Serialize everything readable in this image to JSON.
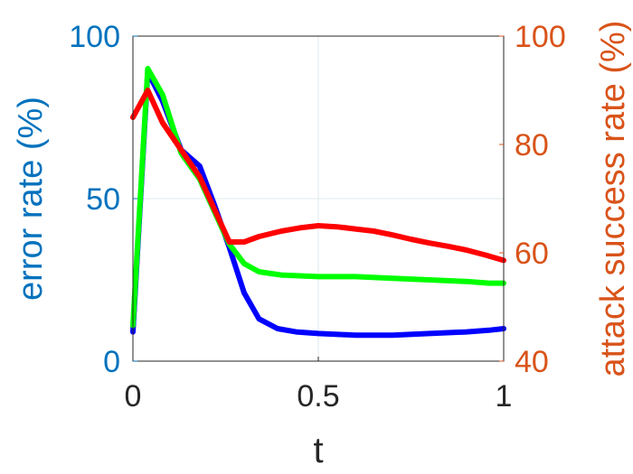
{
  "chart_data": {
    "type": "line",
    "xlabel": "t",
    "ylabel_left": "error rate (%)",
    "ylabel_right": "attack success rate (%)",
    "xlim": [
      0,
      1
    ],
    "ylim_left": [
      0,
      100
    ],
    "ylim_right": [
      40,
      100
    ],
    "xticks": [
      "0",
      "0.5",
      "1"
    ],
    "yticks_left": [
      "0",
      "50",
      "100"
    ],
    "yticks_right": [
      "40",
      "60",
      "80",
      "100"
    ],
    "grid": true,
    "series": [
      {
        "axis": "left",
        "color": "#0000ff",
        "x": [
          0,
          0.04,
          0.08,
          0.13,
          0.18,
          0.22,
          0.26,
          0.3,
          0.34,
          0.39,
          0.44,
          0.5,
          0.6,
          0.7,
          0.8,
          0.9,
          0.96,
          1.0
        ],
        "y": [
          9,
          89,
          80,
          65,
          60,
          48,
          35,
          21,
          13,
          10,
          9,
          8.5,
          8,
          8,
          8.5,
          9,
          9.5,
          10
        ]
      },
      {
        "axis": "left",
        "color": "#00ff00",
        "x": [
          0,
          0.04,
          0.08,
          0.13,
          0.18,
          0.22,
          0.26,
          0.3,
          0.34,
          0.4,
          0.5,
          0.6,
          0.7,
          0.8,
          0.9,
          0.96,
          1.0
        ],
        "y": [
          11,
          90,
          82,
          64,
          56,
          46,
          36,
          30,
          27.5,
          26.5,
          26,
          26,
          25.5,
          25,
          24.5,
          24,
          24
        ]
      },
      {
        "axis": "right",
        "color": "#ff0000",
        "x": [
          0,
          0.04,
          0.08,
          0.13,
          0.18,
          0.22,
          0.26,
          0.3,
          0.34,
          0.4,
          0.45,
          0.5,
          0.55,
          0.6,
          0.65,
          0.7,
          0.75,
          0.8,
          0.85,
          0.9,
          0.95,
          1.0
        ],
        "y": [
          85,
          90,
          84,
          79,
          74,
          68,
          62,
          62,
          63,
          64,
          64.6,
          65,
          64.8,
          64.4,
          64,
          63.3,
          62.5,
          61.8,
          61.2,
          60.5,
          59.6,
          58.6
        ]
      }
    ]
  }
}
